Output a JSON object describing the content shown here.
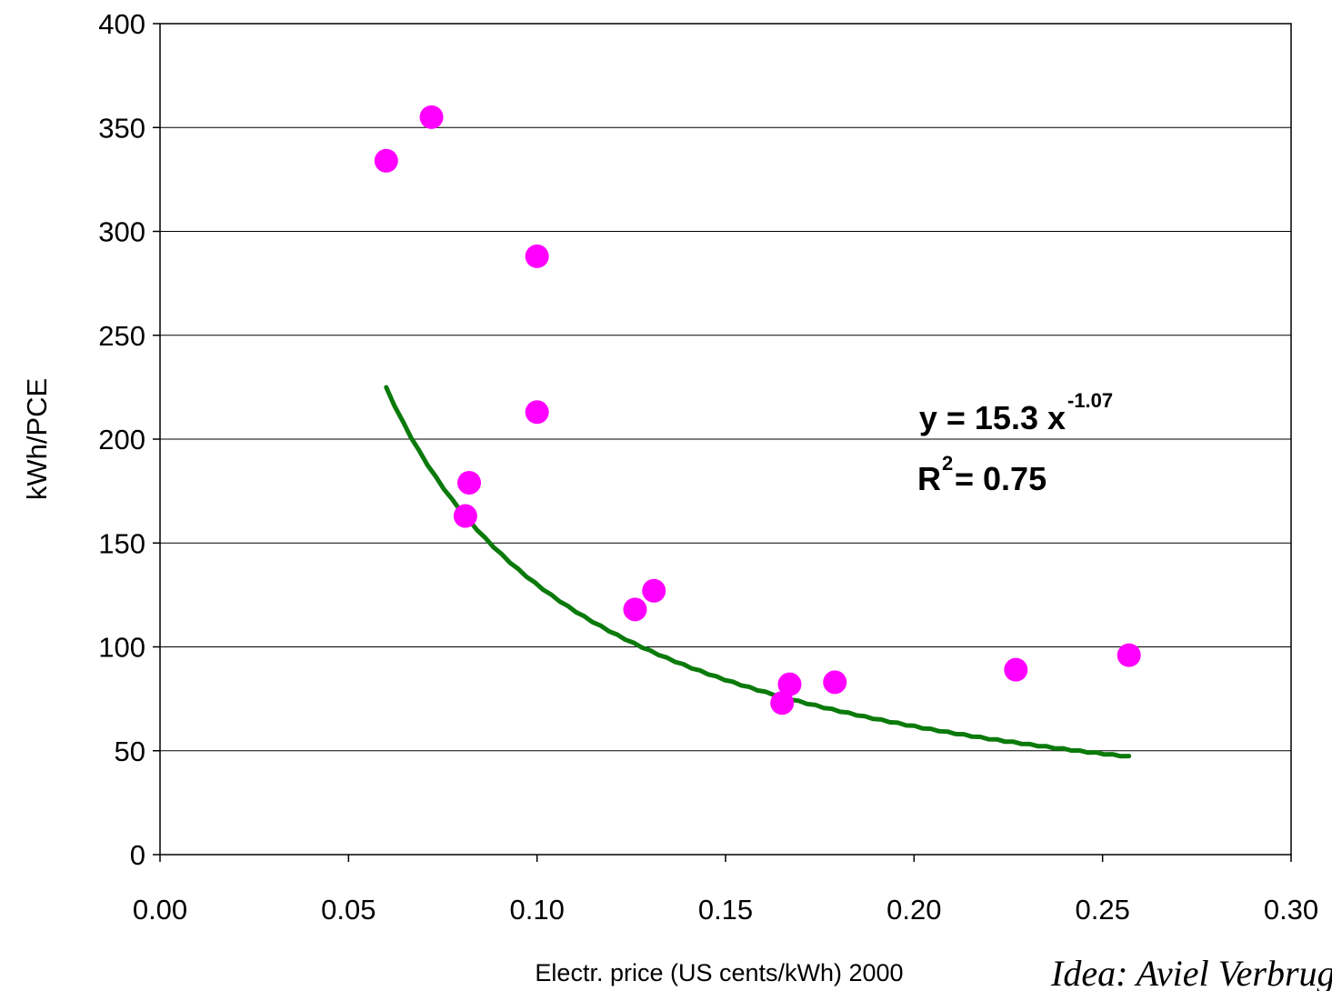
{
  "chart_data": {
    "type": "scatter",
    "title": "",
    "xlabel": "Electr. price (US cents/kWh) 2000",
    "ylabel": "kWh/PCE",
    "xlim": [
      0,
      0.3
    ],
    "ylim": [
      0,
      400
    ],
    "x_ticks": [
      "0.00",
      "0.05",
      "0.10",
      "0.15",
      "0.20",
      "0.25",
      "0.30"
    ],
    "y_ticks": [
      "0",
      "50",
      "100",
      "150",
      "200",
      "250",
      "300",
      "350",
      "400"
    ],
    "grid": "horizontal",
    "point_color": "#ff00ff",
    "trend_color": "#0b7a0b",
    "points": [
      {
        "x": 0.06,
        "y": 334
      },
      {
        "x": 0.072,
        "y": 355
      },
      {
        "x": 0.082,
        "y": 179
      },
      {
        "x": 0.081,
        "y": 163
      },
      {
        "x": 0.1,
        "y": 288
      },
      {
        "x": 0.1,
        "y": 213
      },
      {
        "x": 0.126,
        "y": 118
      },
      {
        "x": 0.131,
        "y": 127
      },
      {
        "x": 0.165,
        "y": 73
      },
      {
        "x": 0.167,
        "y": 82
      },
      {
        "x": 0.179,
        "y": 83
      },
      {
        "x": 0.227,
        "y": 89
      },
      {
        "x": 0.257,
        "y": 96
      }
    ],
    "trendline": {
      "type": "power",
      "coefficient": 15.3,
      "exponent": -1.07,
      "x_range": [
        0.06,
        0.257
      ]
    },
    "annotation": {
      "equation_main": "y = 15.3 x",
      "equation_exp": "-1.07",
      "r2_label": "R",
      "r2_sup": "2",
      "r2_value": " = 0.75"
    }
  },
  "credit": "Idea: Aviel Verbruggen"
}
